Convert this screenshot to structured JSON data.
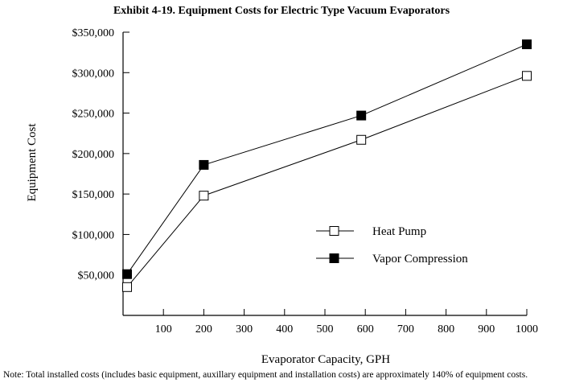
{
  "chart_data": {
    "type": "line",
    "title": "Exhibit 4-19. Equipment Costs for Electric Type Vacuum Evaporators",
    "xlabel": "Evaporator Capacity, GPH",
    "ylabel": "Equipment Cost",
    "xlim": [
      0,
      1000
    ],
    "ylim": [
      0,
      350000
    ],
    "x_ticks": [
      100,
      200,
      300,
      400,
      500,
      600,
      700,
      800,
      900,
      1000
    ],
    "y_ticks": [
      {
        "value": 50000,
        "label": "$50,000"
      },
      {
        "value": 100000,
        "label": "$100,000"
      },
      {
        "value": 150000,
        "label": "$150,000"
      },
      {
        "value": 200000,
        "label": "$200,000"
      },
      {
        "value": 250000,
        "label": "$250,000"
      },
      {
        "value": 300000,
        "label": "$300,000"
      },
      {
        "value": 350000,
        "label": "$350,000"
      }
    ],
    "grid": false,
    "legend_position": "center-right",
    "series": [
      {
        "name": "Heat Pump",
        "marker": "open-square",
        "color": "#000000",
        "x": [
          10,
          200,
          590,
          1000
        ],
        "y": [
          35000,
          148000,
          217000,
          296000
        ]
      },
      {
        "name": "Vapor Compression",
        "marker": "filled-square",
        "color": "#000000",
        "x": [
          10,
          200,
          590,
          1000
        ],
        "y": [
          51000,
          186000,
          247000,
          335000
        ]
      }
    ],
    "note": "Note: Total installed costs (includes basic equipment, auxillary equipment and installation costs) are approximately 140% of equipment costs."
  }
}
